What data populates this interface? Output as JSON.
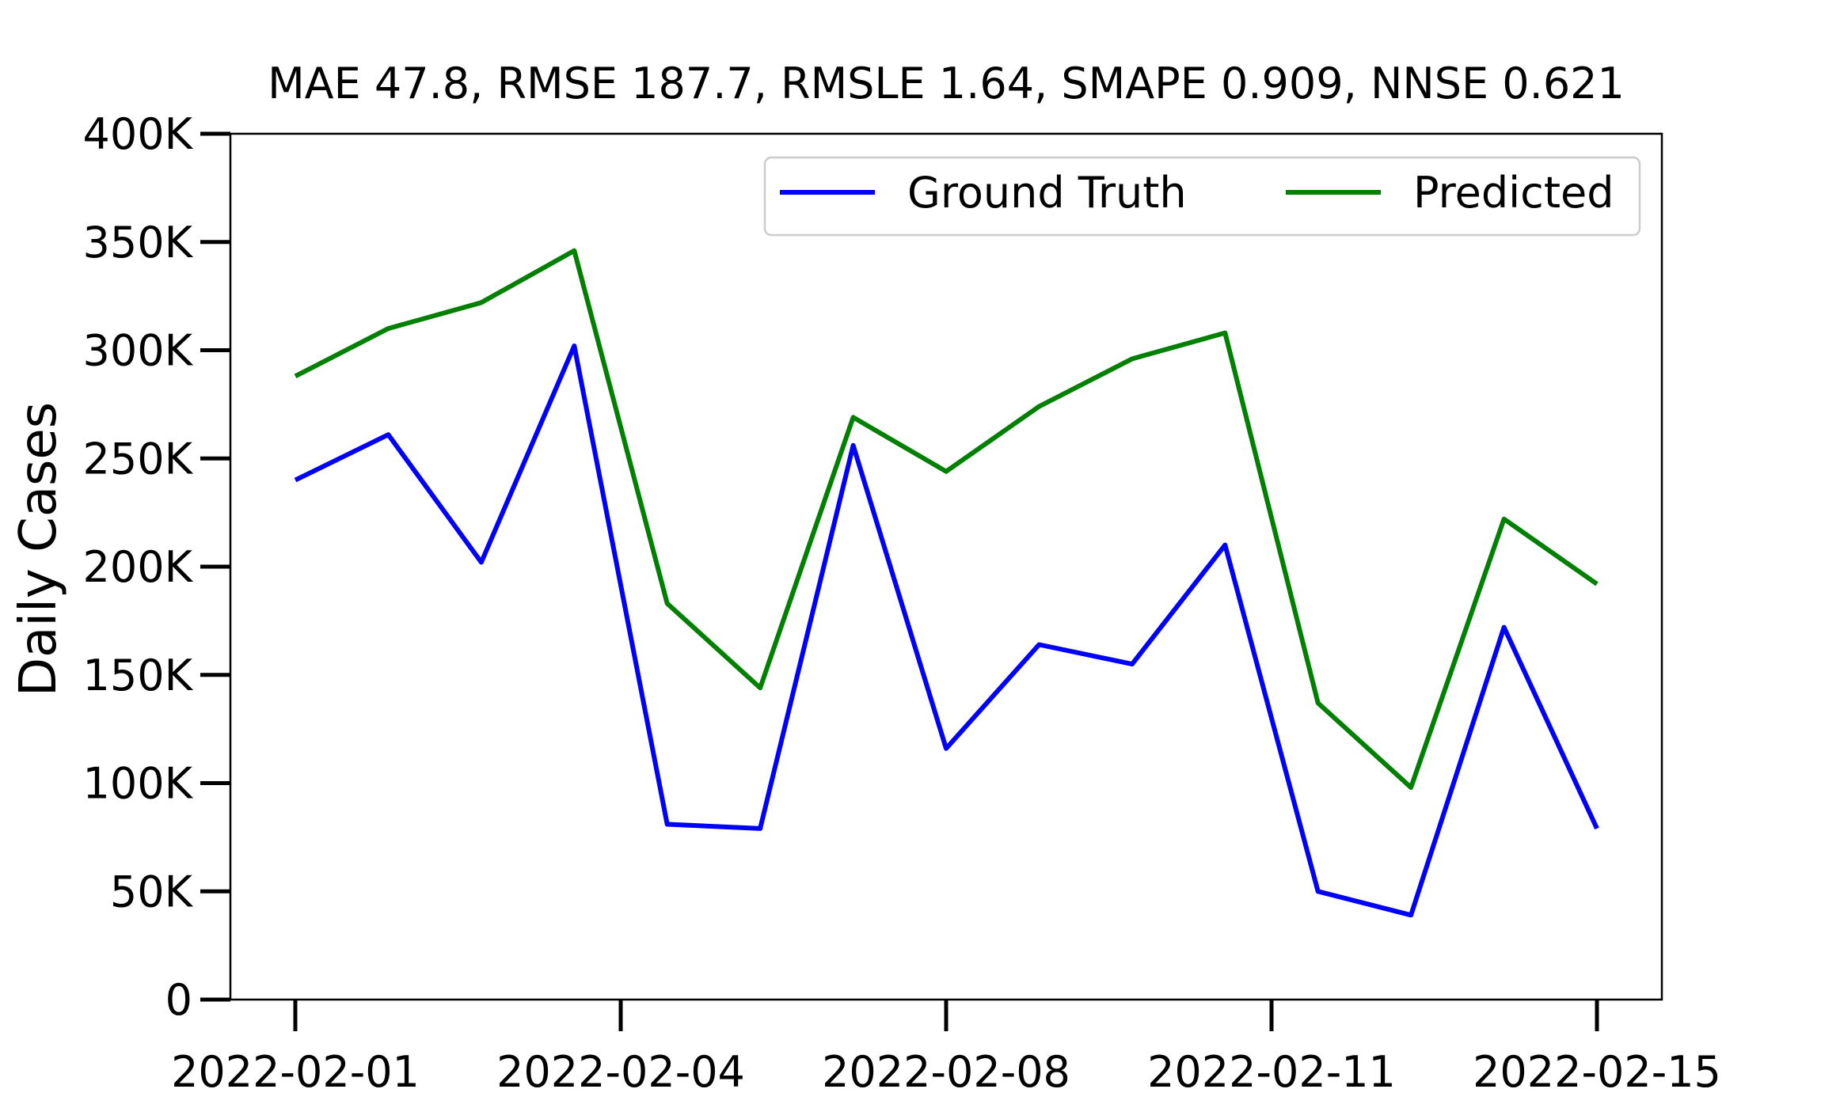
{
  "chart_data": {
    "type": "line",
    "title": "MAE 47.8, RMSE 187.7, RMSLE 1.64, SMAPE 0.909, NNSE 0.621",
    "xlabel": "",
    "ylabel": "Daily Cases",
    "x": [
      "2022-02-01",
      "2022-02-02",
      "2022-02-03",
      "2022-02-04",
      "2022-02-05",
      "2022-02-06",
      "2022-02-07",
      "2022-02-08",
      "2022-02-09",
      "2022-02-10",
      "2022-02-11",
      "2022-02-12",
      "2022-02-13",
      "2022-02-14",
      "2022-02-15"
    ],
    "x_tick_labels": [
      "2022-02-01",
      "2022-02-04",
      "2022-02-08",
      "2022-02-11",
      "2022-02-15"
    ],
    "x_tick_positions": [
      0,
      3.5,
      7,
      10.5,
      14
    ],
    "ylim": [
      0,
      400000
    ],
    "y_ticks": [
      0,
      50000,
      100000,
      150000,
      200000,
      250000,
      300000,
      350000,
      400000
    ],
    "y_tick_labels": [
      "0",
      "50K",
      "100K",
      "150K",
      "200K",
      "250K",
      "300K",
      "350K",
      "400K"
    ],
    "series": [
      {
        "name": "Ground Truth",
        "color": "#0000ff",
        "values": [
          240000,
          261000,
          202000,
          302000,
          81000,
          79000,
          256000,
          116000,
          164000,
          155000,
          210000,
          50000,
          39000,
          172000,
          79000
        ]
      },
      {
        "name": "Predicted",
        "color": "#008000",
        "values": [
          288000,
          310000,
          322000,
          346000,
          183000,
          144000,
          269000,
          244000,
          274000,
          296000,
          308000,
          137000,
          98000,
          222000,
          192000
        ]
      }
    ],
    "legend_position": "top-right",
    "grid": false
  }
}
